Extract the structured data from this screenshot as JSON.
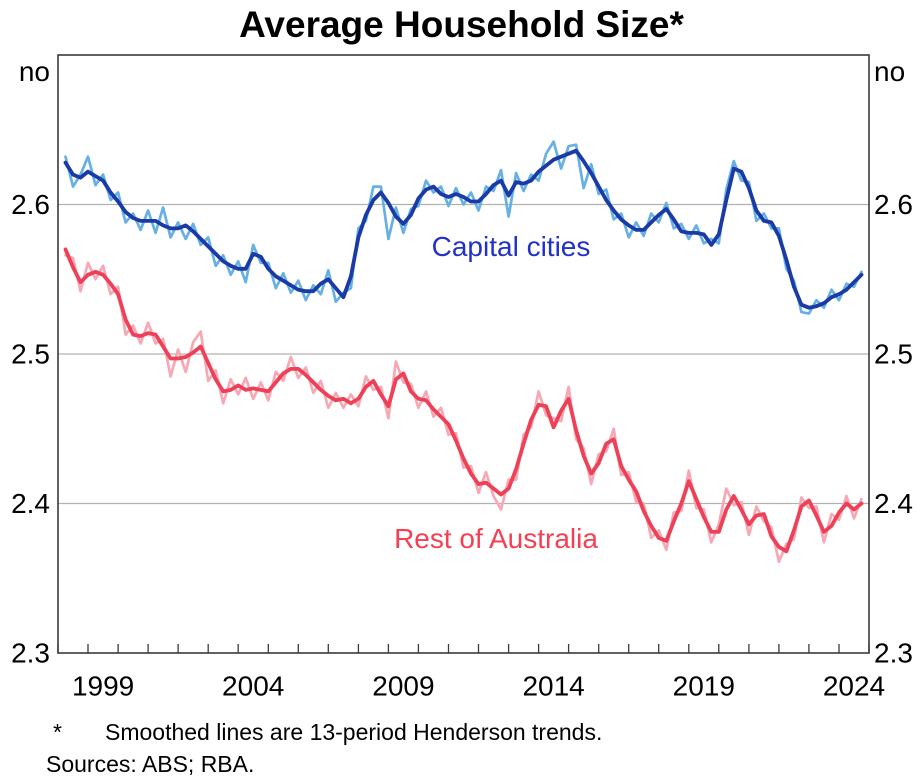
{
  "chart_data": {
    "type": "line",
    "title": "Average Household Size*",
    "unit_label": "no",
    "footnote_marker": "*",
    "footnote": "Smoothed lines are 13-period Henderson trends.",
    "sources": "Sources: ABS; RBA.",
    "xlim": [
      1998,
      2025
    ],
    "ylim": [
      2.3,
      2.7
    ],
    "yticks_labeled": [
      2.3,
      2.4,
      2.5,
      2.6
    ],
    "gridlines": [
      2.4,
      2.5,
      2.6
    ],
    "xticks_labeled": [
      1999,
      2004,
      2009,
      2014,
      2019,
      2024
    ],
    "x_minor_tick_step": 1,
    "grid_on": true,
    "legend_position": "inline-annotations",
    "grid_color": "#b2b2b2",
    "axis_color": "#3a3a3a",
    "x_start": 1998.25,
    "x_step": 0.25,
    "series": [
      {
        "name": "Capital cities",
        "trend_color": "#1a3aa6",
        "raw_color": "#66b0e4",
        "label_color": "#2231c7",
        "trend": [
          2.628,
          2.62,
          2.618,
          2.622,
          2.619,
          2.616,
          2.608,
          2.602,
          2.595,
          2.591,
          2.589,
          2.589,
          2.589,
          2.586,
          2.584,
          2.584,
          2.586,
          2.582,
          2.577,
          2.572,
          2.567,
          2.562,
          2.559,
          2.557,
          2.557,
          2.567,
          2.565,
          2.557,
          2.552,
          2.549,
          2.546,
          2.543,
          2.542,
          2.542,
          2.547,
          2.55,
          2.544,
          2.538,
          2.552,
          2.578,
          2.593,
          2.603,
          2.608,
          2.601,
          2.592,
          2.587,
          2.593,
          2.604,
          2.61,
          2.612,
          2.607,
          2.605,
          2.607,
          2.605,
          2.602,
          2.602,
          2.607,
          2.613,
          2.616,
          2.606,
          2.615,
          2.614,
          2.616,
          2.622,
          2.626,
          2.63,
          2.632,
          2.634,
          2.636,
          2.629,
          2.621,
          2.612,
          2.603,
          2.596,
          2.59,
          2.586,
          2.583,
          2.583,
          2.588,
          2.593,
          2.597,
          2.59,
          2.582,
          2.581,
          2.581,
          2.58,
          2.573,
          2.58,
          2.603,
          2.624,
          2.622,
          2.611,
          2.596,
          2.589,
          2.588,
          2.579,
          2.563,
          2.545,
          2.533,
          2.531,
          2.532,
          2.534,
          2.538,
          2.54,
          2.543,
          2.548,
          2.553
        ],
        "raw_delta": [
          0.004,
          -0.008,
          0.002,
          0.01,
          -0.006,
          0.004,
          -0.005,
          0.006,
          -0.007,
          0.003,
          -0.006,
          0.007,
          -0.008,
          0.012,
          -0.006,
          0.004,
          -0.009,
          0.005,
          -0.004,
          0.006,
          -0.008,
          0.004,
          -0.006,
          0.005,
          -0.009,
          0.006,
          -0.004,
          0.004,
          -0.008,
          0.005,
          -0.005,
          0.006,
          -0.006,
          0.004,
          -0.007,
          0.006,
          -0.009,
          0.003,
          -0.008,
          0.006,
          -0.004,
          0.009,
          0.004,
          -0.024,
          0.006,
          -0.006,
          0.004,
          -0.005,
          0.006,
          -0.004,
          0.005,
          -0.006,
          0.004,
          -0.005,
          0.006,
          -0.006,
          0.005,
          -0.004,
          0.007,
          -0.014,
          0.006,
          -0.005,
          0.004,
          -0.006,
          0.008,
          0.012,
          -0.008,
          0.005,
          0.004,
          -0.018,
          0.006,
          -0.005,
          0.007,
          -0.006,
          0.004,
          -0.008,
          0.005,
          -0.004,
          0.006,
          -0.005,
          0.004,
          -0.006,
          0.005,
          -0.004,
          0.005,
          -0.006,
          0.004,
          -0.006,
          0.007,
          0.005,
          -0.006,
          0.004,
          -0.007,
          0.005,
          -0.004,
          0.005,
          -0.006,
          0.004,
          -0.005,
          -0.004,
          0.004,
          -0.003,
          0.005,
          -0.004,
          0.004,
          -0.003,
          0.002
        ]
      },
      {
        "name": "Rest of Australia",
        "trend_color": "#ee4056",
        "raw_color": "#f8a8b4",
        "label_color": "#f83e52",
        "trend": [
          2.57,
          2.558,
          2.548,
          2.553,
          2.555,
          2.553,
          2.547,
          2.54,
          2.523,
          2.513,
          2.512,
          2.514,
          2.513,
          2.505,
          2.497,
          2.497,
          2.498,
          2.501,
          2.505,
          2.494,
          2.483,
          2.475,
          2.476,
          2.479,
          2.476,
          2.477,
          2.476,
          2.475,
          2.481,
          2.487,
          2.49,
          2.49,
          2.486,
          2.481,
          2.476,
          2.472,
          2.469,
          2.47,
          2.467,
          2.47,
          2.478,
          2.482,
          2.473,
          2.465,
          2.483,
          2.487,
          2.475,
          2.47,
          2.469,
          2.463,
          2.458,
          2.453,
          2.442,
          2.43,
          2.42,
          2.413,
          2.414,
          2.41,
          2.406,
          2.41,
          2.423,
          2.44,
          2.456,
          2.466,
          2.465,
          2.451,
          2.462,
          2.47,
          2.449,
          2.432,
          2.42,
          2.427,
          2.44,
          2.443,
          2.425,
          2.416,
          2.408,
          2.395,
          2.385,
          2.377,
          2.375,
          2.388,
          2.4,
          2.415,
          2.403,
          2.391,
          2.381,
          2.381,
          2.396,
          2.405,
          2.396,
          2.386,
          2.392,
          2.393,
          2.378,
          2.371,
          2.368,
          2.382,
          2.398,
          2.402,
          2.392,
          2.381,
          2.385,
          2.394,
          2.4,
          2.396,
          2.4
        ],
        "raw_delta": [
          -0.004,
          0.006,
          -0.006,
          0.008,
          -0.005,
          0.006,
          -0.007,
          0.005,
          -0.01,
          0.006,
          -0.005,
          0.007,
          -0.006,
          0.005,
          -0.012,
          0.006,
          -0.01,
          0.007,
          0.01,
          -0.012,
          0.006,
          -0.008,
          0.007,
          -0.006,
          0.008,
          -0.007,
          0.005,
          -0.006,
          0.007,
          -0.005,
          0.008,
          -0.006,
          0.005,
          -0.007,
          0.006,
          -0.008,
          0.005,
          -0.006,
          0.006,
          -0.005,
          0.007,
          -0.006,
          0.005,
          -0.008,
          0.012,
          -0.006,
          0.005,
          -0.006,
          0.006,
          -0.005,
          0.006,
          -0.007,
          0.005,
          -0.006,
          0.005,
          -0.006,
          0.007,
          -0.005,
          -0.01,
          0.006,
          -0.007,
          0.006,
          -0.005,
          0.009,
          -0.006,
          0.006,
          -0.007,
          0.008,
          -0.006,
          0.005,
          -0.007,
          0.006,
          -0.005,
          0.007,
          -0.006,
          0.005,
          -0.007,
          0.005,
          -0.008,
          0.005,
          -0.006,
          0.006,
          -0.005,
          0.007,
          -0.006,
          0.005,
          -0.007,
          0.005,
          0.014,
          -0.006,
          0.005,
          -0.007,
          0.006,
          -0.005,
          0.006,
          -0.01,
          0.005,
          -0.006,
          0.006,
          -0.005,
          0.006,
          -0.007,
          0.008,
          -0.005,
          0.005,
          -0.006,
          0.003
        ]
      }
    ]
  }
}
